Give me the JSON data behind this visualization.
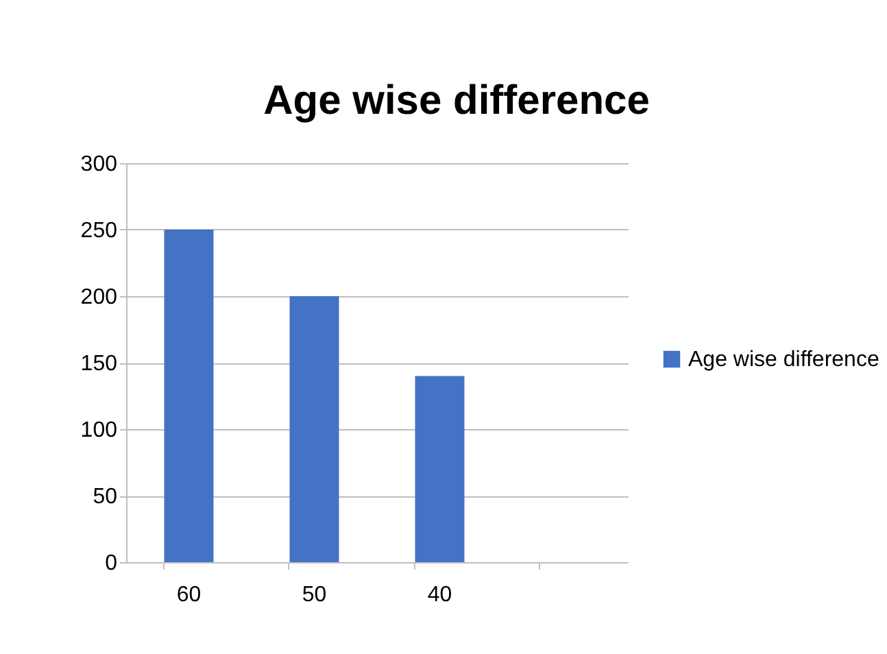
{
  "chart_data": {
    "type": "bar",
    "title": "Age wise difference",
    "categories": [
      "60",
      "50",
      "40",
      null
    ],
    "series": [
      {
        "name": "Age wise difference",
        "color": "#4472c4",
        "values": [
          250,
          200,
          140,
          null
        ]
      }
    ],
    "ylim": [
      0,
      300
    ],
    "yticks": [
      0,
      50,
      100,
      150,
      200,
      250,
      300
    ],
    "grid": "y",
    "legend": "right"
  }
}
